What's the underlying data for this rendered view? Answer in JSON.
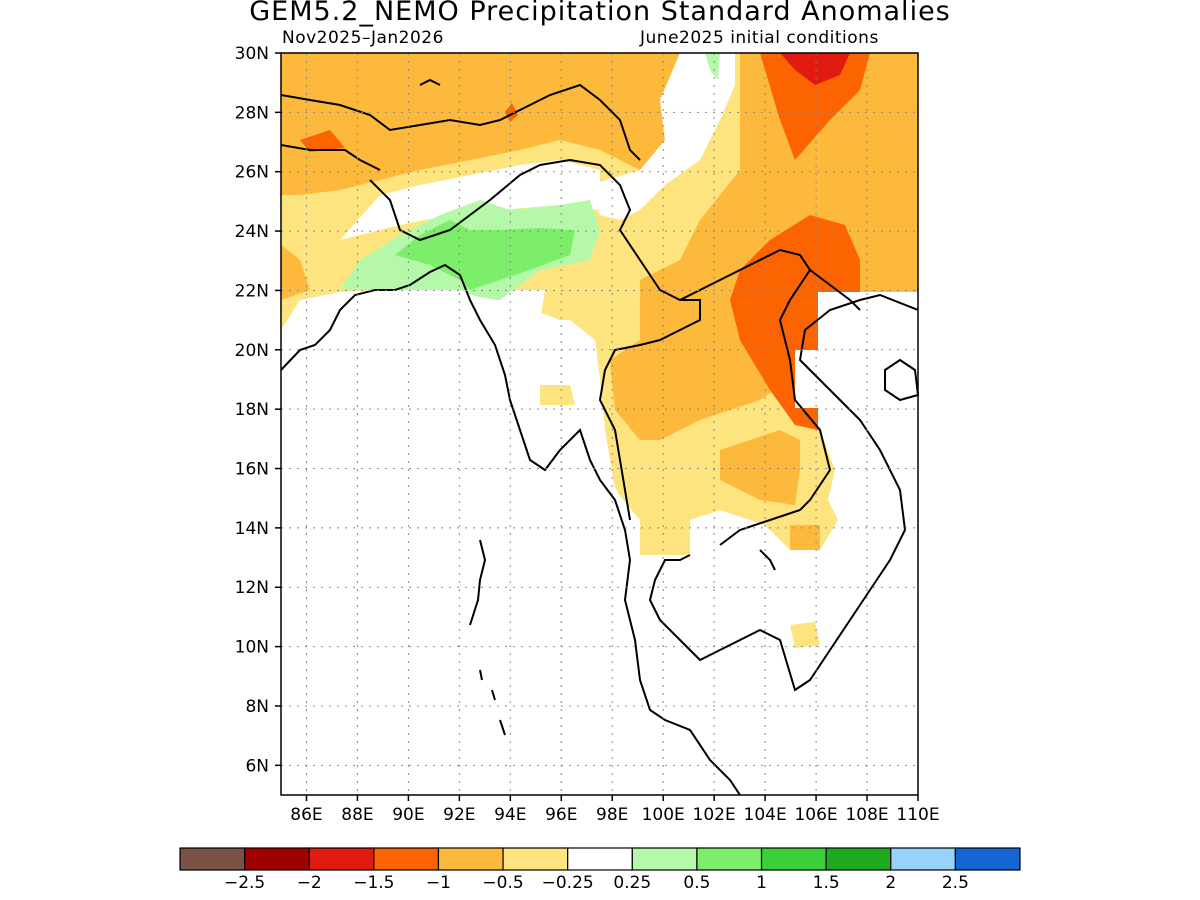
{
  "header": {
    "title": "GEM5.2_NEMO Precipitation Standard Anomalies",
    "period": "Nov2025–Jan2026",
    "init": "June2025 initial conditions"
  },
  "map": {
    "lon_range": [
      85,
      110
    ],
    "lat_range": [
      5,
      30
    ],
    "lon_ticks": [
      "86E",
      "88E",
      "90E",
      "92E",
      "94E",
      "96E",
      "98E",
      "100E",
      "102E",
      "104E",
      "106E",
      "108E",
      "110E"
    ],
    "lat_ticks": [
      "30N",
      "28N",
      "26N",
      "24N",
      "22N",
      "20N",
      "18N",
      "16N",
      "14N",
      "12N",
      "10N",
      "8N",
      "6N"
    ],
    "grid": "dotted"
  },
  "legend": {
    "labels": [
      "−2.5",
      "−2",
      "−1.5",
      "−1",
      "−0.5",
      "−0.25",
      "0.25",
      "0.5",
      "1",
      "1.5",
      "2",
      "2.5"
    ],
    "colors": [
      "#7a5246",
      "#a00000",
      "#e11b0f",
      "#fb6400",
      "#fdb93c",
      "#fee47e",
      "#ffffff",
      "#b6f8aa",
      "#7cee6a",
      "#3bcf3a",
      "#1eaa1e",
      "#96d2fa",
      "#1464d2"
    ]
  }
}
